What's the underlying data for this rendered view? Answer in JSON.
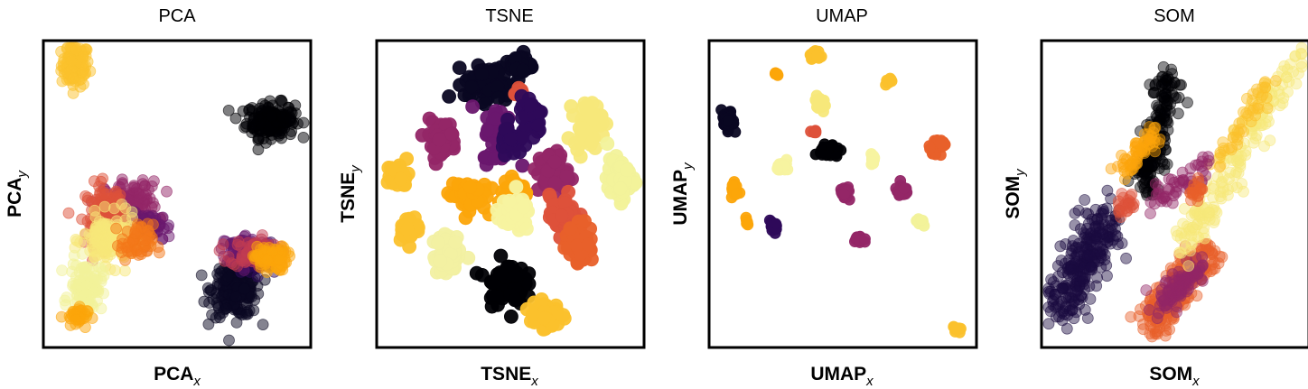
{
  "chart_data": [
    {
      "type": "scatter",
      "title": "PCA",
      "xlabel": {
        "main": "PCA",
        "sub": "x"
      },
      "ylabel": {
        "main": "PCA",
        "sub": "y"
      },
      "ticks": false,
      "point_alpha": 0.5,
      "clusters": [
        {
          "cx": 12,
          "cy": 92,
          "sx": 2.6,
          "sy": 3.5,
          "n": 110,
          "color": "#fbc12c"
        },
        {
          "cx": 85,
          "cy": 74,
          "sx": 4.5,
          "sy": 2.8,
          "n": 190,
          "color": "#000004"
        },
        {
          "cx": 72,
          "cy": 19,
          "sx": 4.5,
          "sy": 4.5,
          "n": 230,
          "color": "#0a0722"
        },
        {
          "cx": 78,
          "cy": 29,
          "sx": 3.5,
          "sy": 2.6,
          "n": 70,
          "color": "#2e0a5a"
        },
        {
          "cx": 76,
          "cy": 32,
          "sx": 5.0,
          "sy": 2.4,
          "n": 80,
          "color": "#6a176e"
        },
        {
          "cx": 79,
          "cy": 31,
          "sx": 4.5,
          "sy": 2.4,
          "n": 80,
          "color": "#c23b52"
        },
        {
          "cx": 85,
          "cy": 29,
          "sx": 3.0,
          "sy": 2.0,
          "n": 80,
          "color": "#fca50a"
        },
        {
          "cx": 33,
          "cy": 46,
          "sx": 5.0,
          "sy": 4.0,
          "n": 170,
          "color": "#932667"
        },
        {
          "cx": 40,
          "cy": 39,
          "sx": 4.0,
          "sy": 2.4,
          "n": 60,
          "color": "#6a176e"
        },
        {
          "cx": 23,
          "cy": 43,
          "sx": 3.6,
          "sy": 5.0,
          "n": 140,
          "color": "#dd513a"
        },
        {
          "cx": 25,
          "cy": 35,
          "sx": 5.0,
          "sy": 4.0,
          "n": 160,
          "color": "#f7e87a"
        },
        {
          "cx": 16,
          "cy": 20,
          "sx": 3.0,
          "sy": 4.0,
          "n": 110,
          "color": "#f2f29a"
        },
        {
          "cx": 12,
          "cy": 10,
          "sx": 2.2,
          "sy": 1.6,
          "n": 40,
          "color": "#fca50a"
        },
        {
          "cx": 35,
          "cy": 34,
          "sx": 3.0,
          "sy": 3.0,
          "n": 60,
          "color": "#f37819"
        }
      ]
    },
    {
      "type": "scatter",
      "title": "TSNE",
      "xlabel": {
        "main": "TSNE",
        "sub": "x"
      },
      "ylabel": {
        "main": "TSNE",
        "sub": "y"
      },
      "ticks": false,
      "point_alpha": 0.95,
      "clusters": [
        {
          "cx": 42,
          "cy": 86,
          "sx": 4.5,
          "sy": 2.8,
          "n": 80,
          "color": "#0a0722"
        },
        {
          "cx": 54,
          "cy": 92,
          "sx": 2.0,
          "sy": 2.0,
          "n": 40,
          "color": "#0a0722"
        },
        {
          "cx": 53,
          "cy": 83,
          "sx": 1.2,
          "sy": 1.2,
          "n": 15,
          "color": "#dd513a"
        },
        {
          "cx": 58,
          "cy": 76,
          "sx": 2.0,
          "sy": 3.0,
          "n": 50,
          "color": "#2e0a5a"
        },
        {
          "cx": 46,
          "cy": 69,
          "sx": 3.0,
          "sy": 4.5,
          "n": 70,
          "color": "#6a176e"
        },
        {
          "cx": 50,
          "cy": 68,
          "sx": 2.0,
          "sy": 2.5,
          "n": 40,
          "color": "#2e0a5a"
        },
        {
          "cx": 24,
          "cy": 68,
          "sx": 3.0,
          "sy": 3.0,
          "n": 60,
          "color": "#932667"
        },
        {
          "cx": 79,
          "cy": 73,
          "sx": 2.6,
          "sy": 3.6,
          "n": 60,
          "color": "#f7e87a"
        },
        {
          "cx": 8,
          "cy": 56,
          "sx": 2.0,
          "sy": 2.0,
          "n": 40,
          "color": "#fbc12c"
        },
        {
          "cx": 66,
          "cy": 57,
          "sx": 2.8,
          "sy": 3.4,
          "n": 60,
          "color": "#932667"
        },
        {
          "cx": 91,
          "cy": 55,
          "sx": 2.4,
          "sy": 3.2,
          "n": 60,
          "color": "#f2f29a"
        },
        {
          "cx": 34,
          "cy": 50,
          "sx": 3.6,
          "sy": 2.6,
          "n": 60,
          "color": "#fca50a"
        },
        {
          "cx": 52,
          "cy": 51,
          "sx": 2.2,
          "sy": 2.2,
          "n": 40,
          "color": "#fca50a"
        },
        {
          "cx": 51,
          "cy": 43,
          "sx": 3.2,
          "sy": 2.6,
          "n": 60,
          "color": "#f7f3a0"
        },
        {
          "cx": 70,
          "cy": 43,
          "sx": 2.6,
          "sy": 3.2,
          "n": 60,
          "color": "#dd513a"
        },
        {
          "cx": 76,
          "cy": 34,
          "sx": 2.6,
          "sy": 3.2,
          "n": 60,
          "color": "#e8602a"
        },
        {
          "cx": 12,
          "cy": 39,
          "sx": 2.0,
          "sy": 2.0,
          "n": 30,
          "color": "#fbc12c"
        },
        {
          "cx": 27,
          "cy": 30,
          "sx": 2.8,
          "sy": 3.2,
          "n": 60,
          "color": "#f2f0a2"
        },
        {
          "cx": 48,
          "cy": 21,
          "sx": 3.6,
          "sy": 3.6,
          "n": 70,
          "color": "#000004"
        },
        {
          "cx": 63,
          "cy": 11,
          "sx": 2.8,
          "sy": 2.6,
          "n": 50,
          "color": "#fbc12c"
        }
      ]
    },
    {
      "type": "scatter",
      "title": "UMAP",
      "xlabel": {
        "main": "UMAP",
        "sub": "x"
      },
      "ylabel": {
        "main": "UMAP",
        "sub": "y"
      },
      "ticks": false,
      "point_alpha": 0.95,
      "clusters": [
        {
          "cx": 40,
          "cy": 95,
          "sx": 1.2,
          "sy": 0.8,
          "n": 20,
          "color": "#fbc12c"
        },
        {
          "cx": 25,
          "cy": 89,
          "sx": 0.5,
          "sy": 0.5,
          "n": 5,
          "color": "#fca50a"
        },
        {
          "cx": 67,
          "cy": 87,
          "sx": 0.8,
          "sy": 0.6,
          "n": 10,
          "color": "#fbc12c"
        },
        {
          "cx": 42,
          "cy": 80,
          "sx": 1.2,
          "sy": 1.0,
          "n": 20,
          "color": "#f7e87a"
        },
        {
          "cx": 7,
          "cy": 73,
          "sx": 1.2,
          "sy": 2.0,
          "n": 30,
          "color": "#0a0722"
        },
        {
          "cx": 39,
          "cy": 70,
          "sx": 0.6,
          "sy": 0.6,
          "n": 6,
          "color": "#dd513a"
        },
        {
          "cx": 45,
          "cy": 64,
          "sx": 1.8,
          "sy": 1.2,
          "n": 30,
          "color": "#000004"
        },
        {
          "cx": 86,
          "cy": 66,
          "sx": 1.8,
          "sy": 1.2,
          "n": 30,
          "color": "#e8602a"
        },
        {
          "cx": 28,
          "cy": 59,
          "sx": 1.2,
          "sy": 0.8,
          "n": 20,
          "color": "#f7f3a0"
        },
        {
          "cx": 61,
          "cy": 61,
          "sx": 0.9,
          "sy": 0.8,
          "n": 12,
          "color": "#f7f3a0"
        },
        {
          "cx": 10,
          "cy": 51,
          "sx": 0.9,
          "sy": 1.2,
          "n": 15,
          "color": "#fca50a"
        },
        {
          "cx": 51,
          "cy": 50,
          "sx": 1.0,
          "sy": 1.5,
          "n": 20,
          "color": "#932667"
        },
        {
          "cx": 72,
          "cy": 51,
          "sx": 1.2,
          "sy": 1.0,
          "n": 20,
          "color": "#932667"
        },
        {
          "cx": 14,
          "cy": 41,
          "sx": 0.5,
          "sy": 0.5,
          "n": 5,
          "color": "#fca50a"
        },
        {
          "cx": 24,
          "cy": 39,
          "sx": 1.0,
          "sy": 1.2,
          "n": 20,
          "color": "#2e0a5a"
        },
        {
          "cx": 56,
          "cy": 35,
          "sx": 1.0,
          "sy": 0.9,
          "n": 15,
          "color": "#932667"
        },
        {
          "cx": 79,
          "cy": 41,
          "sx": 0.9,
          "sy": 0.9,
          "n": 12,
          "color": "#f2f29a"
        },
        {
          "cx": 93,
          "cy": 6,
          "sx": 0.9,
          "sy": 0.6,
          "n": 10,
          "color": "#fbc12c"
        }
      ]
    },
    {
      "type": "scatter",
      "title": "SOM",
      "xlabel": {
        "main": "SOM",
        "sub": "x"
      },
      "ylabel": {
        "main": "SOM",
        "sub": "y"
      },
      "ticks": false,
      "point_alpha": 0.45,
      "bands": [
        {
          "x1": 38,
          "y1": 52,
          "x2": 48,
          "y2": 87,
          "sigma": 2.6,
          "n": 180,
          "color": "#000004"
        },
        {
          "x1": 31,
          "y1": 57,
          "x2": 42,
          "y2": 70,
          "sigma": 1.8,
          "n": 60,
          "color": "#fca50a"
        },
        {
          "x1": 6,
          "y1": 12,
          "x2": 24,
          "y2": 42,
          "sigma": 4.0,
          "n": 260,
          "color": "#1a0b40"
        },
        {
          "x1": 40,
          "y1": 7,
          "x2": 64,
          "y2": 33,
          "sigma": 3.0,
          "n": 230,
          "color": "#e8602a"
        },
        {
          "x1": 44,
          "y1": 13,
          "x2": 60,
          "y2": 27,
          "sigma": 2.0,
          "n": 100,
          "color": "#932667"
        },
        {
          "x1": 52,
          "y1": 30,
          "x2": 95,
          "y2": 95,
          "sigma": 2.8,
          "n": 170,
          "color": "#f7e87a"
        },
        {
          "x1": 65,
          "y1": 60,
          "x2": 85,
          "y2": 86,
          "sigma": 2.2,
          "n": 50,
          "color": "#fbc12c"
        },
        {
          "x1": 44,
          "y1": 48,
          "x2": 64,
          "y2": 60,
          "sigma": 2.2,
          "n": 50,
          "color": "#932667"
        },
        {
          "x1": 56,
          "y1": 49,
          "x2": 60,
          "y2": 53,
          "sigma": 1.2,
          "n": 20,
          "color": "#e8602a"
        },
        {
          "x1": 30,
          "y1": 44,
          "x2": 34,
          "y2": 49,
          "sigma": 1.4,
          "n": 25,
          "color": "#dd513a"
        }
      ]
    }
  ]
}
